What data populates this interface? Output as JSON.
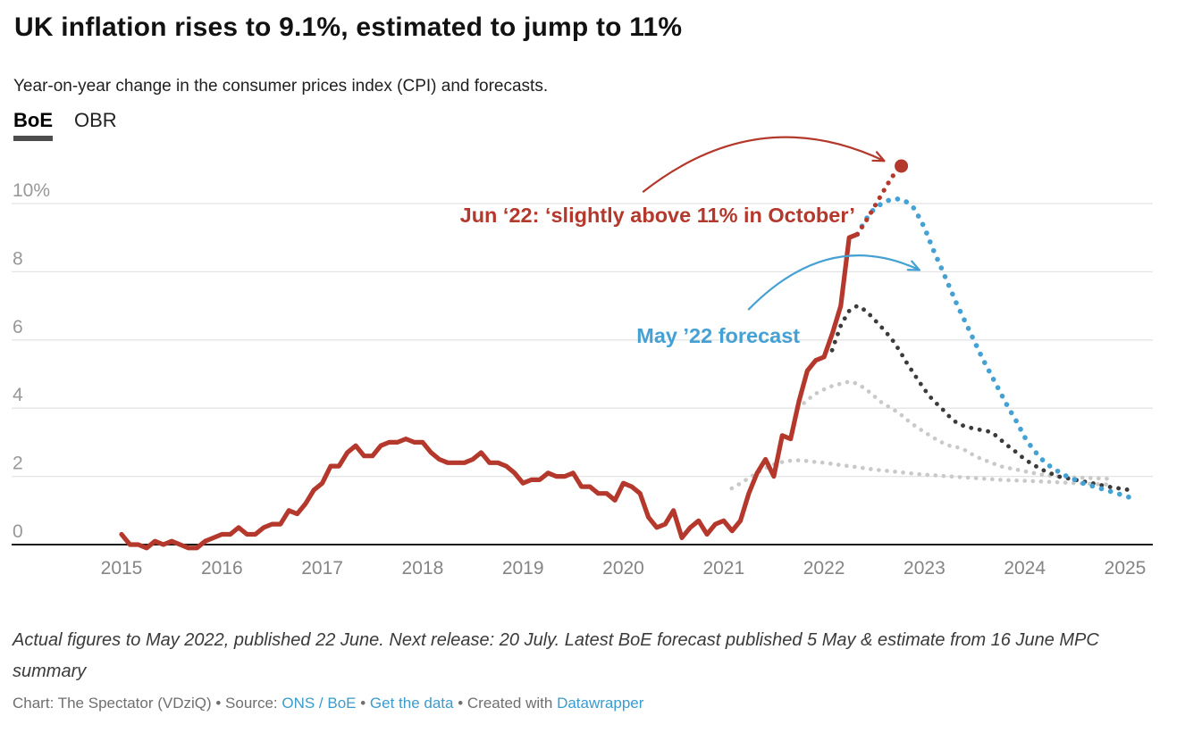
{
  "header": {
    "title": "UK inflation rises to 9.1%, estimated to jump to 11%",
    "subtitle": "Year-on-year change in the consumer prices index (CPI) and forecasts.",
    "tabs": [
      {
        "label": "BoE",
        "active": true
      },
      {
        "label": "OBR",
        "active": false
      }
    ]
  },
  "colors": {
    "red": "#b4382c",
    "blue": "#45a1d3",
    "darkgray": "#3b3b3b",
    "lightgray": "#c9c9c9",
    "grid": "#e4e4e4",
    "axis": "#1c1c1c",
    "ytick_text": "#989898",
    "xtick_text": "#858585",
    "link": "#3a9bce"
  },
  "chart_data": {
    "type": "line",
    "title": "UK inflation rises to 9.1%, estimated to jump to 11%",
    "subtitle": "Year-on-year change in the consumer prices index (CPI) and forecasts.",
    "unit": "%",
    "x_domain": [
      2014.85,
      2025.3
    ],
    "y_domain": [
      -0.5,
      11.5
    ],
    "grid": true,
    "y_ticks": [
      {
        "value": 10,
        "label": "10%"
      },
      {
        "value": 8,
        "label": "8"
      },
      {
        "value": 6,
        "label": "6"
      },
      {
        "value": 4,
        "label": "4"
      },
      {
        "value": 2,
        "label": "2"
      },
      {
        "value": 0,
        "label": "0"
      }
    ],
    "x_ticks": [
      {
        "value": 2015,
        "label": "2015"
      },
      {
        "value": 2016,
        "label": "2016"
      },
      {
        "value": 2017,
        "label": "2017"
      },
      {
        "value": 2018,
        "label": "2018"
      },
      {
        "value": 2019,
        "label": "2019"
      },
      {
        "value": 2020,
        "label": "2020"
      },
      {
        "value": 2021,
        "label": "2021"
      },
      {
        "value": 2022,
        "label": "2022"
      },
      {
        "value": 2023,
        "label": "2023"
      },
      {
        "value": 2024,
        "label": "2024"
      },
      {
        "value": 2025,
        "label": "2025"
      }
    ],
    "series": [
      {
        "id": "older_forecast_light_b",
        "style": "dotted",
        "color": "lightgray",
        "points": [
          [
            2021.08,
            1.65
          ],
          [
            2021.17,
            1.8
          ],
          [
            2021.25,
            1.95
          ],
          [
            2021.33,
            2.1
          ],
          [
            2021.42,
            2.25
          ],
          [
            2021.5,
            2.35
          ],
          [
            2021.58,
            2.42
          ],
          [
            2021.67,
            2.46
          ],
          [
            2021.75,
            2.47
          ],
          [
            2021.83,
            2.45
          ],
          [
            2021.92,
            2.42
          ],
          [
            2022.0,
            2.4
          ],
          [
            2022.17,
            2.33
          ],
          [
            2022.33,
            2.27
          ],
          [
            2022.5,
            2.2
          ],
          [
            2022.67,
            2.15
          ],
          [
            2022.83,
            2.1
          ],
          [
            2023.0,
            2.05
          ],
          [
            2023.25,
            2.0
          ],
          [
            2023.5,
            1.95
          ],
          [
            2023.75,
            1.9
          ],
          [
            2024.0,
            1.87
          ],
          [
            2024.25,
            1.84
          ],
          [
            2024.5,
            1.8
          ],
          [
            2024.85,
            1.76
          ]
        ]
      },
      {
        "id": "older_forecast_light_a",
        "style": "dotted",
        "color": "lightgray",
        "points": [
          [
            2021.8,
            4.15
          ],
          [
            2021.9,
            4.4
          ],
          [
            2022.0,
            4.55
          ],
          [
            2022.08,
            4.65
          ],
          [
            2022.17,
            4.72
          ],
          [
            2022.25,
            4.78
          ],
          [
            2022.33,
            4.72
          ],
          [
            2022.42,
            4.55
          ],
          [
            2022.5,
            4.35
          ],
          [
            2022.58,
            4.15
          ],
          [
            2022.67,
            4.0
          ],
          [
            2022.75,
            3.85
          ],
          [
            2022.83,
            3.65
          ],
          [
            2022.92,
            3.45
          ],
          [
            2023.0,
            3.3
          ],
          [
            2023.08,
            3.15
          ],
          [
            2023.17,
            3.0
          ],
          [
            2023.25,
            2.9
          ],
          [
            2023.33,
            2.85
          ],
          [
            2023.42,
            2.75
          ],
          [
            2023.5,
            2.6
          ],
          [
            2023.58,
            2.5
          ],
          [
            2023.67,
            2.4
          ],
          [
            2023.75,
            2.3
          ],
          [
            2023.83,
            2.25
          ],
          [
            2023.92,
            2.2
          ],
          [
            2024.0,
            2.15
          ],
          [
            2024.17,
            2.05
          ],
          [
            2024.33,
            2.0
          ],
          [
            2024.5,
            1.97
          ],
          [
            2024.67,
            1.95
          ],
          [
            2024.83,
            1.93
          ]
        ]
      },
      {
        "id": "older_forecast_dark",
        "style": "dotted",
        "color": "darkgray",
        "points": [
          [
            2022.08,
            5.7
          ],
          [
            2022.17,
            6.45
          ],
          [
            2022.25,
            6.85
          ],
          [
            2022.33,
            7.0
          ],
          [
            2022.42,
            6.85
          ],
          [
            2022.5,
            6.6
          ],
          [
            2022.58,
            6.35
          ],
          [
            2022.67,
            6.05
          ],
          [
            2022.75,
            5.7
          ],
          [
            2022.83,
            5.3
          ],
          [
            2022.92,
            4.9
          ],
          [
            2023.0,
            4.55
          ],
          [
            2023.08,
            4.25
          ],
          [
            2023.17,
            4.0
          ],
          [
            2023.25,
            3.75
          ],
          [
            2023.33,
            3.55
          ],
          [
            2023.42,
            3.45
          ],
          [
            2023.5,
            3.4
          ],
          [
            2023.58,
            3.35
          ],
          [
            2023.67,
            3.3
          ],
          [
            2023.75,
            3.1
          ],
          [
            2023.83,
            2.9
          ],
          [
            2023.92,
            2.7
          ],
          [
            2024.0,
            2.5
          ],
          [
            2024.08,
            2.35
          ],
          [
            2024.17,
            2.2
          ],
          [
            2024.25,
            2.1
          ],
          [
            2024.33,
            2.0
          ],
          [
            2024.5,
            1.9
          ],
          [
            2024.67,
            1.8
          ],
          [
            2024.83,
            1.7
          ],
          [
            2025.0,
            1.62
          ],
          [
            2025.05,
            1.6
          ]
        ]
      },
      {
        "id": "may_22_forecast",
        "name": "May ’22 forecast",
        "style": "dotted",
        "color": "blue",
        "points": [
          [
            2022.33,
            9.1
          ],
          [
            2022.42,
            9.55
          ],
          [
            2022.5,
            9.85
          ],
          [
            2022.6,
            10.05
          ],
          [
            2022.7,
            10.15
          ],
          [
            2022.8,
            10.1
          ],
          [
            2022.9,
            9.85
          ],
          [
            2023.0,
            9.3
          ],
          [
            2023.08,
            8.7
          ],
          [
            2023.17,
            8.1
          ],
          [
            2023.25,
            7.55
          ],
          [
            2023.33,
            7.0
          ],
          [
            2023.42,
            6.45
          ],
          [
            2023.5,
            5.95
          ],
          [
            2023.58,
            5.45
          ],
          [
            2023.67,
            4.95
          ],
          [
            2023.75,
            4.5
          ],
          [
            2023.83,
            4.05
          ],
          [
            2023.92,
            3.6
          ],
          [
            2024.0,
            3.15
          ],
          [
            2024.08,
            2.8
          ],
          [
            2024.17,
            2.5
          ],
          [
            2024.25,
            2.3
          ],
          [
            2024.33,
            2.15
          ],
          [
            2024.42,
            2.0
          ],
          [
            2024.5,
            1.9
          ],
          [
            2024.58,
            1.8
          ],
          [
            2024.67,
            1.72
          ],
          [
            2024.75,
            1.65
          ],
          [
            2024.83,
            1.58
          ],
          [
            2024.92,
            1.5
          ],
          [
            2025.0,
            1.43
          ],
          [
            2025.05,
            1.38
          ]
        ]
      },
      {
        "id": "jun_22_estimate",
        "name": "Jun ‘22 estimate",
        "style": "dotted",
        "color": "red",
        "points": [
          [
            2022.33,
            9.1
          ],
          [
            2022.42,
            9.5
          ],
          [
            2022.5,
            9.9
          ],
          [
            2022.58,
            10.3
          ],
          [
            2022.66,
            10.7
          ],
          [
            2022.73,
            11.0
          ]
        ],
        "marker": {
          "t": 2022.77,
          "v": 11.1,
          "r": 7.5
        }
      },
      {
        "id": "cpi_actual",
        "style": "solid",
        "color": "red",
        "monthly_start": 2015.0,
        "monthly_values": [
          0.3,
          0.0,
          0.0,
          -0.1,
          0.1,
          0.0,
          0.1,
          0.0,
          -0.1,
          -0.1,
          0.1,
          0.2,
          0.3,
          0.3,
          0.5,
          0.3,
          0.3,
          0.5,
          0.6,
          0.6,
          1.0,
          0.9,
          1.2,
          1.6,
          1.8,
          2.3,
          2.3,
          2.7,
          2.9,
          2.6,
          2.6,
          2.9,
          3.0,
          3.0,
          3.1,
          3.0,
          3.0,
          2.7,
          2.5,
          2.4,
          2.4,
          2.4,
          2.5,
          2.7,
          2.4,
          2.4,
          2.3,
          2.1,
          1.8,
          1.9,
          1.9,
          2.1,
          2.0,
          2.0,
          2.1,
          1.7,
          1.7,
          1.5,
          1.5,
          1.3,
          1.8,
          1.7,
          1.5,
          0.8,
          0.5,
          0.6,
          1.0,
          0.2,
          0.5,
          0.7,
          0.3,
          0.6,
          0.7,
          0.4,
          0.7,
          1.5,
          2.1,
          2.5,
          2.0,
          3.2,
          3.1,
          4.2,
          5.1,
          5.4,
          5.5,
          6.2,
          7.0,
          9.0,
          9.1
        ]
      }
    ],
    "annotations": [
      {
        "id": "jun22_note",
        "text": "Jun ‘22: ‘slightly above 11% in October’",
        "color": "red",
        "t_end": 2022.31,
        "v_baseline": 9.45,
        "arrow": {
          "from": [
            2020.2,
            10.35
          ],
          "ctrl": [
            2021.35,
            13.0
          ],
          "to": [
            2022.6,
            11.25
          ]
        }
      },
      {
        "id": "may22_note",
        "text": "May ’22 forecast",
        "color": "blue",
        "t_end": 2021.76,
        "v_baseline": 5.92,
        "arrow": {
          "from": [
            2021.25,
            6.9
          ],
          "ctrl": [
            2022.05,
            9.3
          ],
          "to": [
            2022.95,
            8.05
          ]
        }
      }
    ]
  },
  "footer": {
    "notes": "Actual figures to May 2022, published 22 June. Next release: 20 July. Latest BoE forecast published 5 May & estimate from 16 June MPC summary",
    "credit": {
      "part1": "Chart: The Spectator (VDziQ) • Source: ",
      "source_link": "ONS / BoE",
      "sep1": " • ",
      "get_data_link": "Get the data",
      "part2": " • Created with ",
      "tool_link": "Datawrapper"
    }
  }
}
